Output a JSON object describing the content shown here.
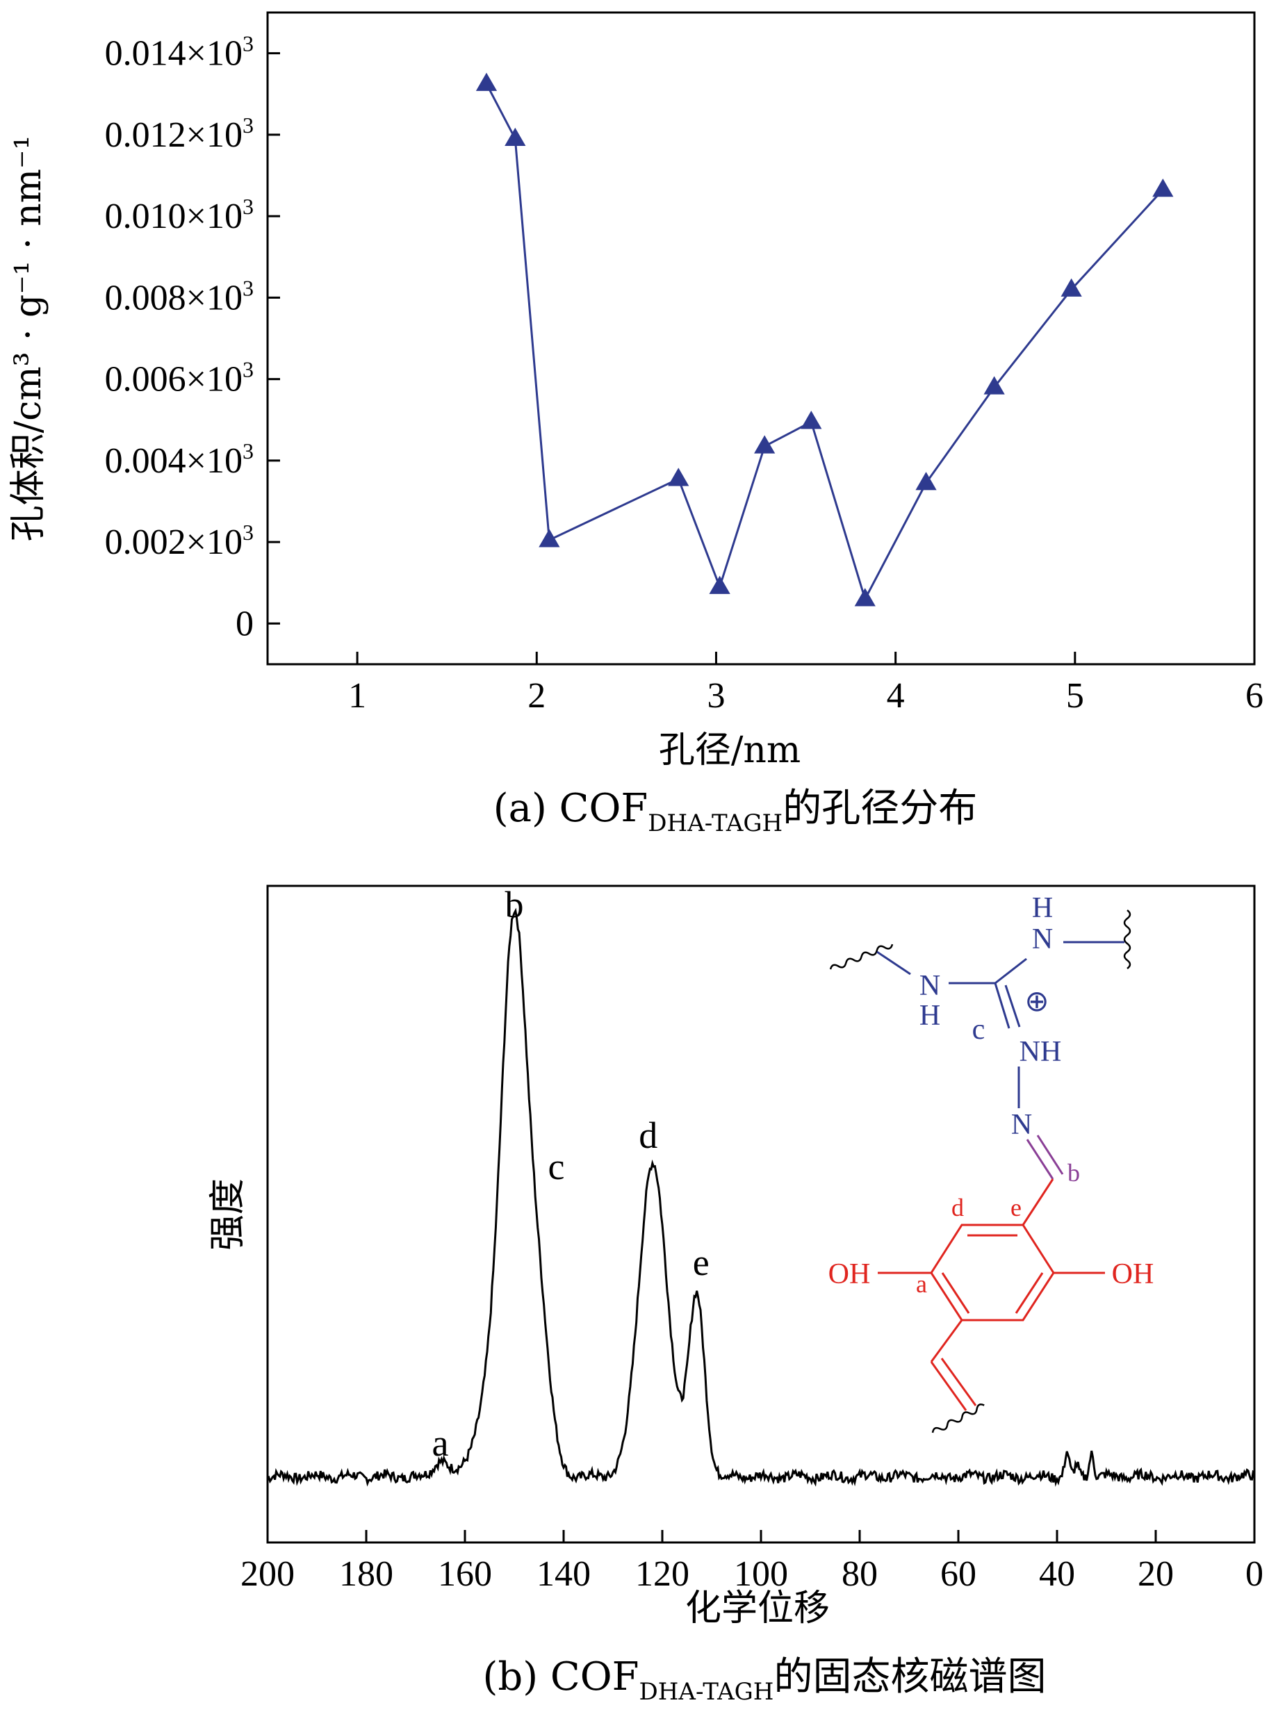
{
  "colors": {
    "series": "#2e3a8f",
    "axis": "#000000",
    "mol_blue": "#2e3a8f",
    "mol_red": "#e0251f",
    "mol_purple": "#8a3f96"
  },
  "chart_data": [
    {
      "type": "line",
      "xlabel": "孔径/nm",
      "ylabel": "孔体积/cm³ · g⁻¹ · nm⁻¹",
      "caption": {
        "prefix": "(a) COF",
        "subscript": "DHA-TAGH",
        "suffix": "的孔径分布"
      },
      "xlim": [
        0.5,
        6
      ],
      "ylim": [
        -0.001,
        0.015
      ],
      "x_ticks": [
        1,
        2,
        3,
        4,
        5,
        6
      ],
      "y_ticks": [
        "0",
        "0.002×10³",
        "0.004×10³",
        "0.006×10³",
        "0.008×10³",
        "0.010×10³",
        "0.012×10³",
        "0.014×10³"
      ],
      "y_tick_values": [
        0,
        0.002,
        0.004,
        0.006,
        0.008,
        0.01,
        0.012,
        0.014
      ],
      "marker": "triangle",
      "series": [
        {
          "x": [
            1.72,
            1.88,
            2.07,
            2.79,
            3.02,
            3.27,
            3.53,
            3.83,
            4.17,
            4.55,
            4.98,
            5.49
          ],
          "y": [
            0.01325,
            0.0119,
            0.00205,
            0.00355,
            0.0009,
            0.00435,
            0.00495,
            0.0006,
            0.00345,
            0.0058,
            0.0082,
            0.01065
          ]
        }
      ]
    },
    {
      "type": "line",
      "xlabel": "化学位移",
      "ylabel": "强度",
      "caption": {
        "prefix": "(b) COF",
        "subscript": "DHA-TAGH",
        "suffix": "的固态核磁谱图"
      },
      "xlim": [
        200,
        0
      ],
      "x_reversed": true,
      "x_ticks": [
        200,
        180,
        160,
        140,
        120,
        100,
        80,
        60,
        40,
        20,
        0
      ],
      "peaks": [
        {
          "label": "a",
          "x": 165,
          "height": 0.03
        },
        {
          "label": "b",
          "x": 150,
          "height": 1.0
        },
        {
          "label": "c",
          "x": 145,
          "height": 0.5
        },
        {
          "label": "d",
          "x": 122,
          "height": 0.58
        },
        {
          "label": "e",
          "x": 113,
          "height": 0.33
        }
      ],
      "minor_peaks": [
        {
          "x": 38,
          "height": 0.045
        },
        {
          "x": 33,
          "height": 0.045
        }
      ],
      "structure_labels": {
        "n_h_top_h": "H",
        "n_h_top_n": "N",
        "n_h_left_n": "N",
        "n_h_left_h": "H",
        "charge": "⊕",
        "c": "c",
        "nh": "NH",
        "n": "N",
        "b": "b",
        "d": "d",
        "e": "e",
        "a": "a",
        "oh_left": "OH",
        "oh_right": "OH"
      }
    }
  ]
}
